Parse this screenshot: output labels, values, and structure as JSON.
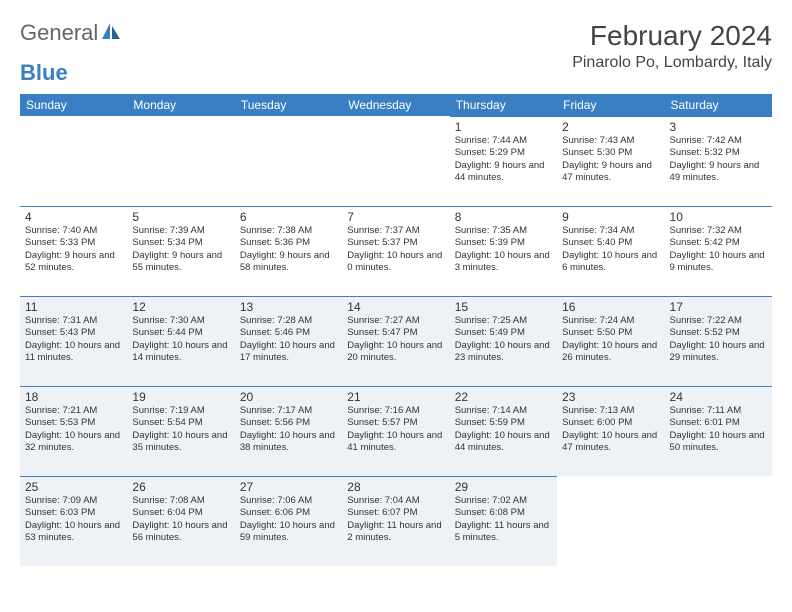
{
  "logo": {
    "general": "General",
    "blue": "Blue"
  },
  "title": "February 2024",
  "location": "Pinarolo Po, Lombardy, Italy",
  "colors": {
    "header_bg": "#3a7fc4",
    "header_text": "#ffffff",
    "shaded_bg": "#eef2f6",
    "border": "#3a7fc4",
    "text": "#333333",
    "title_color": "#444444"
  },
  "layout": {
    "columns": 7,
    "rows": 5,
    "day_header_fontsize": 12,
    "day_num_fontsize": 12,
    "day_info_fontsize": 9.5,
    "title_fontsize": 28,
    "location_fontsize": 16
  },
  "day_headers": [
    "Sunday",
    "Monday",
    "Tuesday",
    "Wednesday",
    "Thursday",
    "Friday",
    "Saturday"
  ],
  "weeks": [
    {
      "shaded": false,
      "days": [
        {
          "num": "",
          "sunrise": "",
          "sunset": "",
          "daylight": ""
        },
        {
          "num": "",
          "sunrise": "",
          "sunset": "",
          "daylight": ""
        },
        {
          "num": "",
          "sunrise": "",
          "sunset": "",
          "daylight": ""
        },
        {
          "num": "",
          "sunrise": "",
          "sunset": "",
          "daylight": ""
        },
        {
          "num": "1",
          "sunrise": "Sunrise: 7:44 AM",
          "sunset": "Sunset: 5:29 PM",
          "daylight": "Daylight: 9 hours and 44 minutes."
        },
        {
          "num": "2",
          "sunrise": "Sunrise: 7:43 AM",
          "sunset": "Sunset: 5:30 PM",
          "daylight": "Daylight: 9 hours and 47 minutes."
        },
        {
          "num": "3",
          "sunrise": "Sunrise: 7:42 AM",
          "sunset": "Sunset: 5:32 PM",
          "daylight": "Daylight: 9 hours and 49 minutes."
        }
      ]
    },
    {
      "shaded": false,
      "days": [
        {
          "num": "4",
          "sunrise": "Sunrise: 7:40 AM",
          "sunset": "Sunset: 5:33 PM",
          "daylight": "Daylight: 9 hours and 52 minutes."
        },
        {
          "num": "5",
          "sunrise": "Sunrise: 7:39 AM",
          "sunset": "Sunset: 5:34 PM",
          "daylight": "Daylight: 9 hours and 55 minutes."
        },
        {
          "num": "6",
          "sunrise": "Sunrise: 7:38 AM",
          "sunset": "Sunset: 5:36 PM",
          "daylight": "Daylight: 9 hours and 58 minutes."
        },
        {
          "num": "7",
          "sunrise": "Sunrise: 7:37 AM",
          "sunset": "Sunset: 5:37 PM",
          "daylight": "Daylight: 10 hours and 0 minutes."
        },
        {
          "num": "8",
          "sunrise": "Sunrise: 7:35 AM",
          "sunset": "Sunset: 5:39 PM",
          "daylight": "Daylight: 10 hours and 3 minutes."
        },
        {
          "num": "9",
          "sunrise": "Sunrise: 7:34 AM",
          "sunset": "Sunset: 5:40 PM",
          "daylight": "Daylight: 10 hours and 6 minutes."
        },
        {
          "num": "10",
          "sunrise": "Sunrise: 7:32 AM",
          "sunset": "Sunset: 5:42 PM",
          "daylight": "Daylight: 10 hours and 9 minutes."
        }
      ]
    },
    {
      "shaded": true,
      "days": [
        {
          "num": "11",
          "sunrise": "Sunrise: 7:31 AM",
          "sunset": "Sunset: 5:43 PM",
          "daylight": "Daylight: 10 hours and 11 minutes."
        },
        {
          "num": "12",
          "sunrise": "Sunrise: 7:30 AM",
          "sunset": "Sunset: 5:44 PM",
          "daylight": "Daylight: 10 hours and 14 minutes."
        },
        {
          "num": "13",
          "sunrise": "Sunrise: 7:28 AM",
          "sunset": "Sunset: 5:46 PM",
          "daylight": "Daylight: 10 hours and 17 minutes."
        },
        {
          "num": "14",
          "sunrise": "Sunrise: 7:27 AM",
          "sunset": "Sunset: 5:47 PM",
          "daylight": "Daylight: 10 hours and 20 minutes."
        },
        {
          "num": "15",
          "sunrise": "Sunrise: 7:25 AM",
          "sunset": "Sunset: 5:49 PM",
          "daylight": "Daylight: 10 hours and 23 minutes."
        },
        {
          "num": "16",
          "sunrise": "Sunrise: 7:24 AM",
          "sunset": "Sunset: 5:50 PM",
          "daylight": "Daylight: 10 hours and 26 minutes."
        },
        {
          "num": "17",
          "sunrise": "Sunrise: 7:22 AM",
          "sunset": "Sunset: 5:52 PM",
          "daylight": "Daylight: 10 hours and 29 minutes."
        }
      ]
    },
    {
      "shaded": true,
      "days": [
        {
          "num": "18",
          "sunrise": "Sunrise: 7:21 AM",
          "sunset": "Sunset: 5:53 PM",
          "daylight": "Daylight: 10 hours and 32 minutes."
        },
        {
          "num": "19",
          "sunrise": "Sunrise: 7:19 AM",
          "sunset": "Sunset: 5:54 PM",
          "daylight": "Daylight: 10 hours and 35 minutes."
        },
        {
          "num": "20",
          "sunrise": "Sunrise: 7:17 AM",
          "sunset": "Sunset: 5:56 PM",
          "daylight": "Daylight: 10 hours and 38 minutes."
        },
        {
          "num": "21",
          "sunrise": "Sunrise: 7:16 AM",
          "sunset": "Sunset: 5:57 PM",
          "daylight": "Daylight: 10 hours and 41 minutes."
        },
        {
          "num": "22",
          "sunrise": "Sunrise: 7:14 AM",
          "sunset": "Sunset: 5:59 PM",
          "daylight": "Daylight: 10 hours and 44 minutes."
        },
        {
          "num": "23",
          "sunrise": "Sunrise: 7:13 AM",
          "sunset": "Sunset: 6:00 PM",
          "daylight": "Daylight: 10 hours and 47 minutes."
        },
        {
          "num": "24",
          "sunrise": "Sunrise: 7:11 AM",
          "sunset": "Sunset: 6:01 PM",
          "daylight": "Daylight: 10 hours and 50 minutes."
        }
      ]
    },
    {
      "shaded": true,
      "days": [
        {
          "num": "25",
          "sunrise": "Sunrise: 7:09 AM",
          "sunset": "Sunset: 6:03 PM",
          "daylight": "Daylight: 10 hours and 53 minutes."
        },
        {
          "num": "26",
          "sunrise": "Sunrise: 7:08 AM",
          "sunset": "Sunset: 6:04 PM",
          "daylight": "Daylight: 10 hours and 56 minutes."
        },
        {
          "num": "27",
          "sunrise": "Sunrise: 7:06 AM",
          "sunset": "Sunset: 6:06 PM",
          "daylight": "Daylight: 10 hours and 59 minutes."
        },
        {
          "num": "28",
          "sunrise": "Sunrise: 7:04 AM",
          "sunset": "Sunset: 6:07 PM",
          "daylight": "Daylight: 11 hours and 2 minutes."
        },
        {
          "num": "29",
          "sunrise": "Sunrise: 7:02 AM",
          "sunset": "Sunset: 6:08 PM",
          "daylight": "Daylight: 11 hours and 5 minutes."
        },
        {
          "num": "",
          "sunrise": "",
          "sunset": "",
          "daylight": ""
        },
        {
          "num": "",
          "sunrise": "",
          "sunset": "",
          "daylight": ""
        }
      ]
    }
  ]
}
